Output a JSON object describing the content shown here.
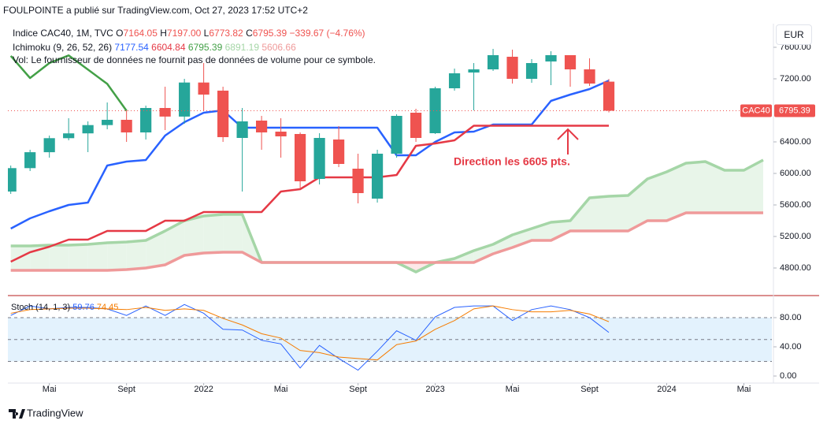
{
  "header": {
    "published": "FOULPOINTE a publié sur TradingView.com, Oct 27, 2023 17:52 UTC+2"
  },
  "footer": {
    "brand": "TradingView"
  },
  "chart_data": [
    {
      "type": "candlestick",
      "symbol": "Indice CAC40, 1M, TVC",
      "ohlc_legend": [
        {
          "key": "O",
          "value": "7164.05"
        },
        {
          "key": "H",
          "value": "7197.00"
        },
        {
          "key": "L",
          "value": "6773.82"
        },
        {
          "key": "C",
          "value": "6795.39"
        }
      ],
      "change": "−339.67 (−4.76%)",
      "indicator": {
        "name": "Ichimoku (9, 26, 52, 26)",
        "legend_values": [
          7177.54,
          6604.84,
          6795.39,
          6891.19,
          5606.66
        ]
      },
      "note": "Vol: Le fournisseur de données ne fournit pas de données de volume pour ce symbole.",
      "currency": "EUR",
      "last_price_name": "CAC40",
      "annotation": "Direction les 6605 pts.",
      "up_color": "#26a69a",
      "down_color": "#ef5350",
      "x": [
        0,
        1,
        2,
        3,
        4,
        5,
        6,
        7,
        8,
        9,
        10,
        11,
        12,
        13,
        14,
        15,
        16,
        17,
        18,
        19,
        20,
        21,
        22,
        23,
        24,
        25,
        26,
        27,
        28,
        29,
        30,
        31
      ],
      "open": [
        5770,
        6067,
        6269,
        6447,
        6508,
        6613,
        6680,
        6520,
        6830,
        6721,
        7153,
        7050,
        6450,
        6670,
        6530,
        6500,
        5930,
        6430,
        6060,
        5680,
        6250,
        6770,
        6510,
        7080,
        7280,
        7320,
        7480,
        7200,
        7420,
        7500,
        7320,
        7164.05
      ],
      "high": [
        6100,
        6300,
        6480,
        6700,
        6660,
        6900,
        6800,
        6860,
        7100,
        7200,
        7400,
        7100,
        6830,
        6730,
        6700,
        6520,
        6510,
        6600,
        6250,
        6300,
        6750,
        6820,
        7100,
        7330,
        7400,
        7580,
        7570,
        7450,
        7550,
        7500,
        7460,
        7197
      ],
      "low": [
        5740,
        6030,
        6200,
        6420,
        6270,
        6560,
        6400,
        6430,
        6550,
        6630,
        6800,
        6400,
        5770,
        6300,
        6200,
        5800,
        5860,
        6080,
        5620,
        5630,
        6200,
        6400,
        6500,
        7050,
        6800,
        7300,
        7140,
        7150,
        7120,
        7100,
        7110,
        6773.82
      ],
      "close": [
        6067,
        6269,
        6447,
        6508,
        6613,
        6680,
        6520,
        6830,
        6721,
        7153,
        7000,
        6460,
        6660,
        6520,
        6470,
        5900,
        6450,
        6120,
        5750,
        6250,
        6730,
        6450,
        7080,
        7270,
        7320,
        7500,
        7200,
        7400,
        7500,
        7320,
        7140,
        6795.39
      ],
      "series": [
        {
          "color": "#2962ff",
          "width": 2.5,
          "x": [
            0,
            1,
            2,
            3,
            4,
            5,
            6,
            7,
            8,
            9,
            10,
            11,
            12,
            13,
            14,
            15,
            16,
            17,
            18,
            19,
            20,
            21,
            22,
            23,
            24,
            25,
            26,
            27,
            28,
            29,
            30,
            31
          ],
          "values": [
            5300,
            5430,
            5520,
            5600,
            5630,
            6100,
            6150,
            6170,
            6480,
            6650,
            6770,
            6800,
            6580,
            6580,
            6580,
            6580,
            6580,
            6580,
            6580,
            6580,
            6230,
            6230,
            6400,
            6520,
            6530,
            6620,
            6620,
            6620,
            6920,
            7000,
            7070,
            7177.54
          ]
        },
        {
          "color": "#e53945",
          "width": 2.5,
          "x": [
            0,
            1,
            2,
            3,
            4,
            5,
            6,
            7,
            8,
            9,
            10,
            11,
            12,
            13,
            14,
            15,
            16,
            17,
            18,
            19,
            20,
            21,
            22,
            23,
            24,
            25,
            26,
            27,
            28,
            29,
            30,
            31
          ],
          "values": [
            4880,
            5000,
            5070,
            5160,
            5160,
            5270,
            5270,
            5270,
            5400,
            5400,
            5510,
            5510,
            5510,
            5510,
            5770,
            5800,
            5950,
            5950,
            5950,
            5950,
            5980,
            6350,
            6380,
            6420,
            6605,
            6605,
            6605,
            6605,
            6605,
            6605,
            6605,
            6604.84
          ]
        },
        {
          "color": "#43a047",
          "width": 2.5,
          "x": [
            0,
            1,
            2,
            3,
            4,
            5,
            6
          ],
          "values": [
            7491,
            7210,
            7400,
            7497,
            7317,
            7136,
            6795.39
          ]
        },
        {
          "color": "#a5d6a7",
          "width": 3.5,
          "x": [
            0,
            1,
            2,
            3,
            4,
            5,
            6,
            7,
            8,
            9,
            10,
            11,
            12,
            13,
            14,
            15,
            16,
            17,
            18,
            19,
            20,
            21,
            22,
            23,
            24,
            25,
            26,
            27,
            28,
            29,
            30,
            31,
            32,
            33,
            34,
            35,
            36,
            37,
            38,
            39
          ],
          "values": [
            5080,
            5080,
            5090,
            5090,
            5100,
            5120,
            5130,
            5150,
            5270,
            5400,
            5460,
            5480,
            5480,
            4870,
            4870,
            4870,
            4870,
            4870,
            4870,
            4870,
            4870,
            4750,
            4870,
            4920,
            5020,
            5100,
            5220,
            5300,
            5380,
            5400,
            5690,
            5710,
            5720,
            5930,
            6020,
            6130,
            6150,
            6040,
            6040,
            6170
          ]
        },
        {
          "color": "#ef9a9a",
          "width": 3.5,
          "x": [
            0,
            1,
            2,
            3,
            4,
            5,
            6,
            7,
            8,
            9,
            10,
            11,
            12,
            13,
            14,
            15,
            16,
            17,
            18,
            19,
            20,
            21,
            22,
            23,
            24,
            25,
            26,
            27,
            28,
            29,
            30,
            31,
            32,
            33,
            34,
            35,
            36,
            37,
            38,
            39
          ],
          "values": [
            4770,
            4770,
            4770,
            4770,
            4770,
            4770,
            4780,
            4800,
            4840,
            4960,
            4990,
            5000,
            5000,
            4870,
            4870,
            4870,
            4870,
            4870,
            4870,
            4870,
            4870,
            4870,
            4870,
            4870,
            4870,
            4980,
            5060,
            5150,
            5150,
            5270,
            5270,
            5270,
            5270,
            5400,
            5400,
            5500,
            5500,
            5500,
            5500,
            5500
          ]
        }
      ],
      "cloud": {
        "up_color": "#e8f5e9",
        "down_color": "#fde8e8"
      },
      "xlim": [
        -0.15,
        39.45
      ],
      "ylim": [
        4500,
        7900
      ],
      "yticks": [
        {
          "value": 4800,
          "label": "4800.00"
        },
        {
          "value": 5200,
          "label": "5200.00"
        },
        {
          "value": 5600,
          "label": "5600.00"
        },
        {
          "value": 6000,
          "label": "6000.00"
        },
        {
          "value": 6400,
          "label": "6400.00"
        },
        {
          "value": 7200,
          "label": "7200.00"
        },
        {
          "value": 7600,
          "label": "7600.00"
        }
      ]
    },
    {
      "type": "line",
      "indicator": {
        "name": "Stoch (14, 1, 3)",
        "legend_values": [
          59.76,
          74.45
        ]
      },
      "x": [
        0,
        1,
        2,
        3,
        4,
        5,
        6,
        7,
        8,
        9,
        10,
        11,
        12,
        13,
        14,
        15,
        16,
        17,
        18,
        19,
        20,
        21,
        22,
        23,
        24,
        25,
        26,
        27,
        28,
        29,
        30,
        31
      ],
      "series": [
        {
          "color": "#2962ff",
          "values": [
            83,
            96,
            92,
            94,
            94,
            92,
            83,
            96,
            83,
            98,
            86,
            64,
            63,
            49,
            44,
            11,
            42,
            24,
            8,
            34,
            62,
            49,
            81,
            94,
            96,
            96,
            76,
            91,
            96,
            91,
            80,
            59.76
          ]
        },
        {
          "color": "#f57c00",
          "values": [
            86,
            91,
            92,
            93,
            93,
            92,
            91,
            94,
            90,
            92,
            90,
            79,
            70,
            58,
            52,
            35,
            32,
            26,
            24,
            22,
            43,
            48,
            64,
            76,
            92,
            96,
            91,
            88,
            88,
            90,
            85,
            74.45
          ]
        }
      ],
      "band": [
        20,
        80
      ],
      "band_color": "#e3f2fd",
      "levels": [
        20,
        50,
        80
      ],
      "xlim": [
        -0.15,
        39.45
      ],
      "ylim": [
        -8.6,
        107
      ],
      "yticks": [
        {
          "value": 0,
          "label": "0.00"
        },
        {
          "value": 40,
          "label": "40.00"
        },
        {
          "value": 80,
          "label": "80.00"
        }
      ],
      "xticks": [
        {
          "value": 2,
          "label": "Mai"
        },
        {
          "value": 6,
          "label": "Sept"
        },
        {
          "value": 10,
          "label": "2022"
        },
        {
          "value": 14,
          "label": "Mai"
        },
        {
          "value": 18,
          "label": "Sept"
        },
        {
          "value": 22,
          "label": "2023"
        },
        {
          "value": 26,
          "label": "Mai"
        },
        {
          "value": 30,
          "label": "Sept"
        },
        {
          "value": 34,
          "label": "2024"
        },
        {
          "value": 38,
          "label": "Mai"
        }
      ]
    }
  ]
}
